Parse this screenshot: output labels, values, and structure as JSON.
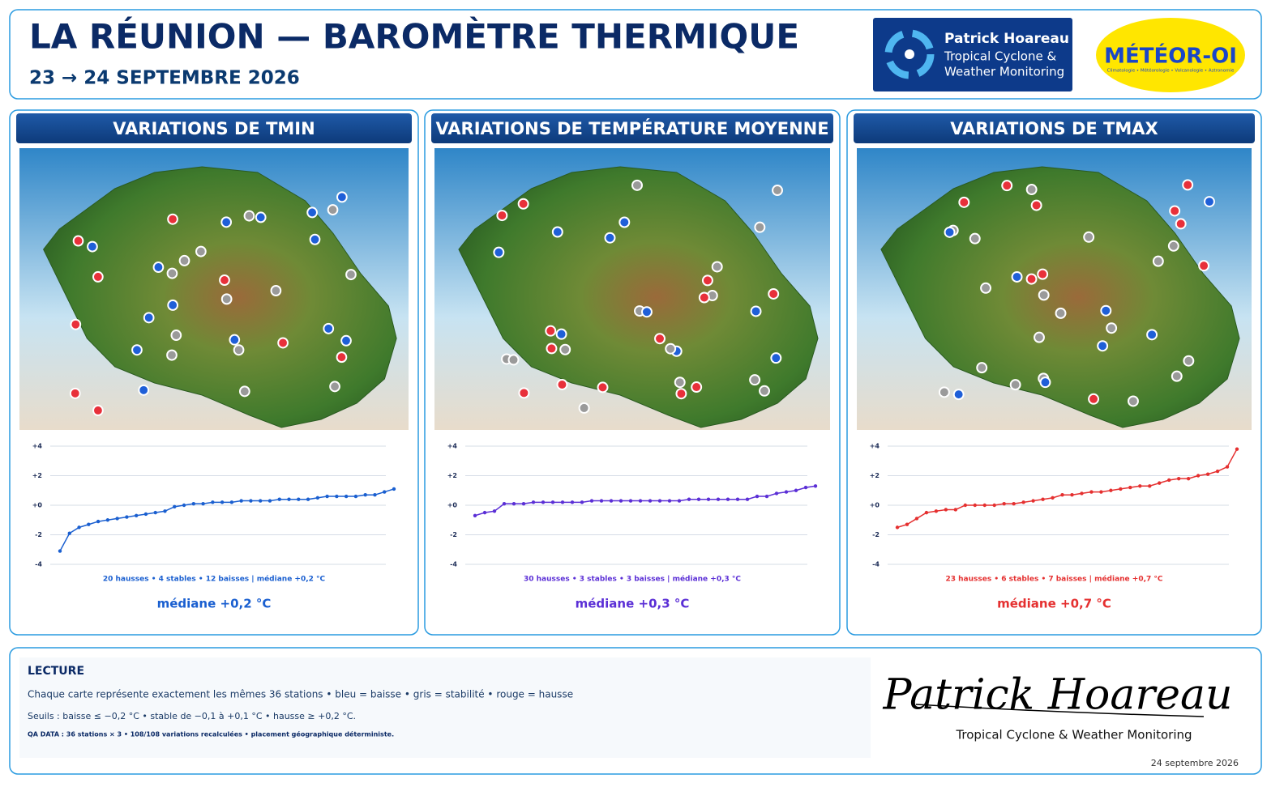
{
  "header": {
    "title": "LA RÉUNION — BAROMÈTRE THERMIQUE",
    "subtitle": "23 → 24 SEPTEMBRE 2026",
    "logo1": {
      "name": "Patrick Hoareau",
      "line1": "Tropical Cyclone &",
      "line2": "Weather Monitoring"
    },
    "logo2": {
      "name": "MÉTÉOR-OI",
      "tagline": "Climatologie • Météorologie • Volcanologie • Astronomie"
    }
  },
  "panels": [
    {
      "title": "VARIATIONS DE TMIN",
      "summary": "20 hausses • 4 stables • 12 baisses | médiane +0,2 °C",
      "median": "médiane +0,2 °C"
    },
    {
      "title": "VARIATIONS DE TEMPÉRATURE MOYENNE",
      "summary": "30 hausses • 3 stables • 3 baisses | médiane +0,3 °C",
      "median": "médiane +0,3 °C"
    },
    {
      "title": "VARIATIONS DE TMAX",
      "summary": "23 hausses • 6 stables • 7 baisses | médiane +0,7 °C",
      "median": "médiane +0,7 °C"
    }
  ],
  "chart_data": [
    {
      "type": "line",
      "color": "#1a5fd0",
      "values": [
        -3.1,
        -1.9,
        -1.5,
        -1.3,
        -1.1,
        -1.0,
        -0.9,
        -0.8,
        -0.7,
        -0.6,
        -0.5,
        -0.4,
        -0.1,
        0.0,
        0.1,
        0.1,
        0.2,
        0.2,
        0.2,
        0.3,
        0.3,
        0.3,
        0.3,
        0.4,
        0.4,
        0.4,
        0.4,
        0.5,
        0.6,
        0.6,
        0.6,
        0.6,
        0.7,
        0.7,
        0.9,
        1.1
      ],
      "ylim": [
        -4,
        4
      ],
      "yticks": [
        {
          "value": 4,
          "label": "+4"
        },
        {
          "value": 2,
          "label": "+2"
        },
        {
          "value": 0,
          "label": "+0"
        },
        -2,
        -4
      ],
      "grid": true
    },
    {
      "type": "line",
      "color": "#5b2fd6",
      "values": [
        -0.7,
        -0.5,
        -0.4,
        0.1,
        0.1,
        0.1,
        0.2,
        0.2,
        0.2,
        0.2,
        0.2,
        0.2,
        0.3,
        0.3,
        0.3,
        0.3,
        0.3,
        0.3,
        0.3,
        0.3,
        0.3,
        0.3,
        0.4,
        0.4,
        0.4,
        0.4,
        0.4,
        0.4,
        0.4,
        0.6,
        0.6,
        0.8,
        0.9,
        1.0,
        1.2,
        1.3
      ],
      "ylim": [
        -4,
        4
      ],
      "yticks": [
        {
          "value": 4,
          "label": "+4"
        },
        {
          "value": 2,
          "label": "+2"
        },
        {
          "value": 0,
          "label": "+0"
        },
        -2,
        -4
      ],
      "grid": true
    },
    {
      "type": "line",
      "color": "#e53030",
      "values": [
        -1.5,
        -1.3,
        -0.9,
        -0.5,
        -0.4,
        -0.3,
        -0.3,
        0.0,
        0.0,
        0.0,
        0.0,
        0.1,
        0.1,
        0.2,
        0.3,
        0.4,
        0.5,
        0.7,
        0.7,
        0.8,
        0.9,
        0.9,
        1.0,
        1.1,
        1.2,
        1.3,
        1.3,
        1.5,
        1.7,
        1.8,
        1.8,
        2.0,
        2.1,
        2.3,
        2.6,
        3.8
      ],
      "ylim": [
        -4,
        4
      ],
      "yticks": [
        {
          "value": 4,
          "label": "+4"
        },
        {
          "value": 2,
          "label": "+2"
        },
        {
          "value": 0,
          "label": "+0"
        },
        -2,
        -4
      ],
      "grid": true
    }
  ],
  "lecture": {
    "title": "LECTURE",
    "line1": "Chaque carte représente exactement les mêmes 36 stations • bleu = baisse • gris = stabilité • rouge = hausse",
    "line2": "Seuils : baisse ≤ −0,2 °C • stable de −0,1 à +0,1 °C • hausse ≥ +0,2 °C.",
    "qa": "QA DATA : 36 stations × 3 • 108/108 variations recalculées • placement géographique déterministe."
  },
  "signature": {
    "name": "Patrick Hoareau",
    "tagline": "Tropical Cyclone & Weather Monitoring"
  },
  "date": "24 septembre 2026"
}
